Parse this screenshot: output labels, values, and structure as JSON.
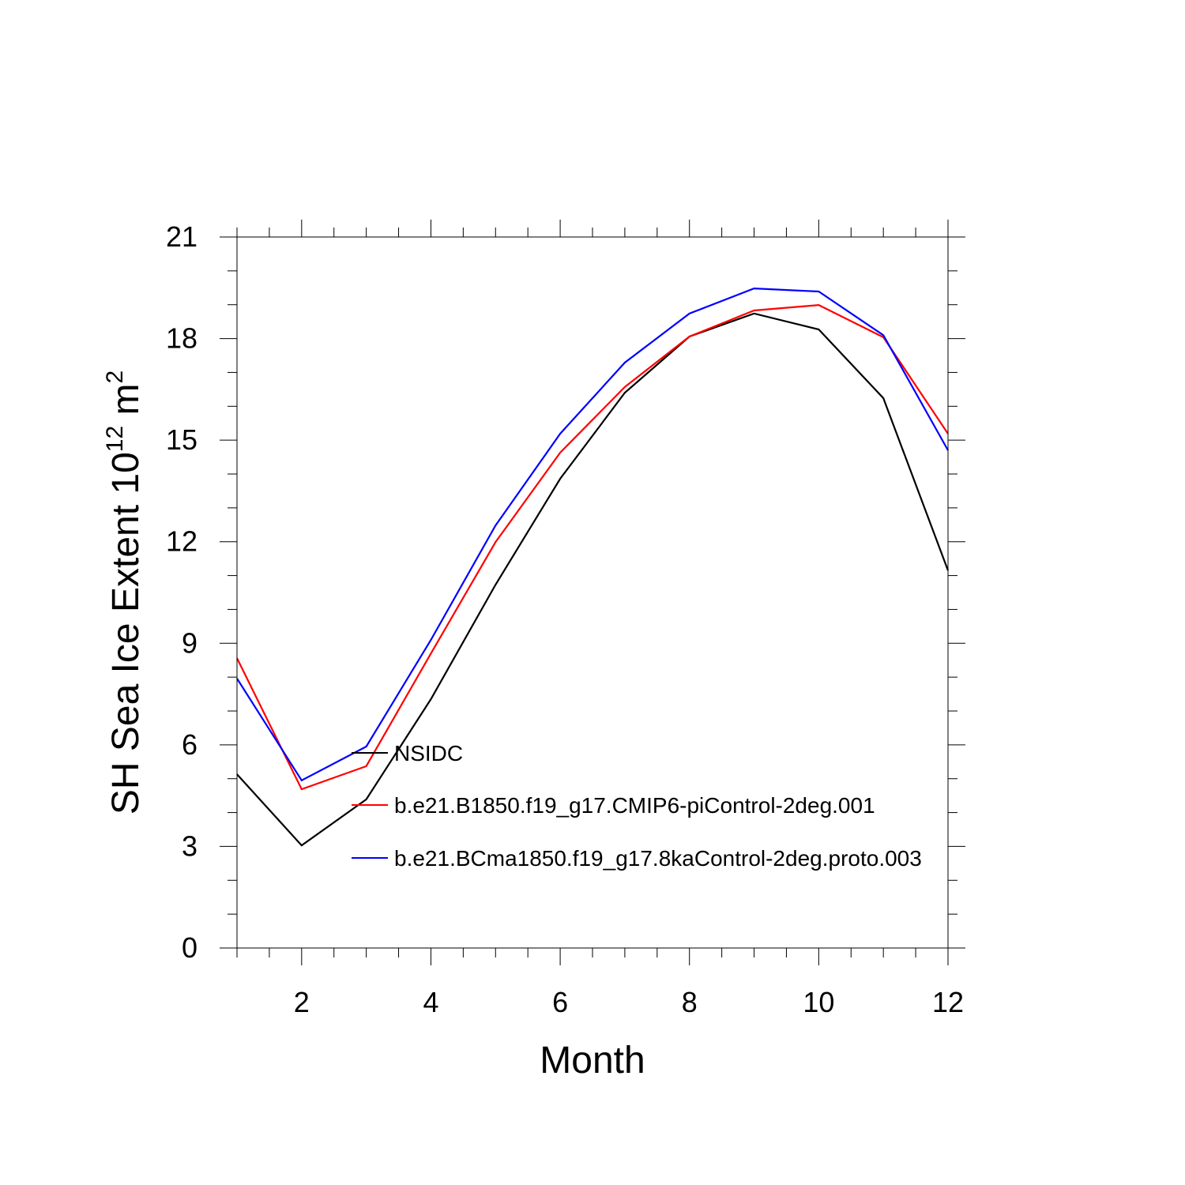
{
  "chart_data": {
    "type": "line",
    "title": "",
    "xlabel": "Month",
    "ylabel": "SH Sea Ice Extent 10",
    "ylabel_exp": "12",
    "ylabel_unit": " m",
    "ylabel_unit_exp": "2",
    "xlim": [
      1,
      12
    ],
    "ylim": [
      0,
      21
    ],
    "xticks": [
      2,
      4,
      6,
      8,
      10,
      12
    ],
    "yticks": [
      0,
      3,
      6,
      9,
      12,
      15,
      18,
      21
    ],
    "x_minor_step": 0.5,
    "y_minor_step": 1,
    "grid": false,
    "legend_placement": "lower-center (inside plot)",
    "x": [
      1,
      2,
      3,
      4,
      5,
      6,
      7,
      8,
      9,
      10,
      11,
      12
    ],
    "series": [
      {
        "name": "NSIDC",
        "color": "#000000",
        "values": [
          5.13,
          3.03,
          4.39,
          7.35,
          10.73,
          13.86,
          16.4,
          18.06,
          18.74,
          18.27,
          16.24,
          11.15
        ]
      },
      {
        "name": "b.e21.B1850.f19_g17.CMIP6-piControl-2deg.001",
        "color": "#ff0000",
        "values": [
          8.56,
          4.69,
          5.37,
          8.7,
          11.99,
          14.63,
          16.57,
          18.06,
          18.83,
          18.99,
          18.04,
          15.19
        ]
      },
      {
        "name": "b.e21.BCma1850.f19_g17.8kaControl-2deg.proto.003",
        "color": "#0000ff",
        "values": [
          7.96,
          4.95,
          5.95,
          9.1,
          12.48,
          15.19,
          17.29,
          18.74,
          19.48,
          19.39,
          18.1,
          14.7
        ]
      }
    ]
  }
}
